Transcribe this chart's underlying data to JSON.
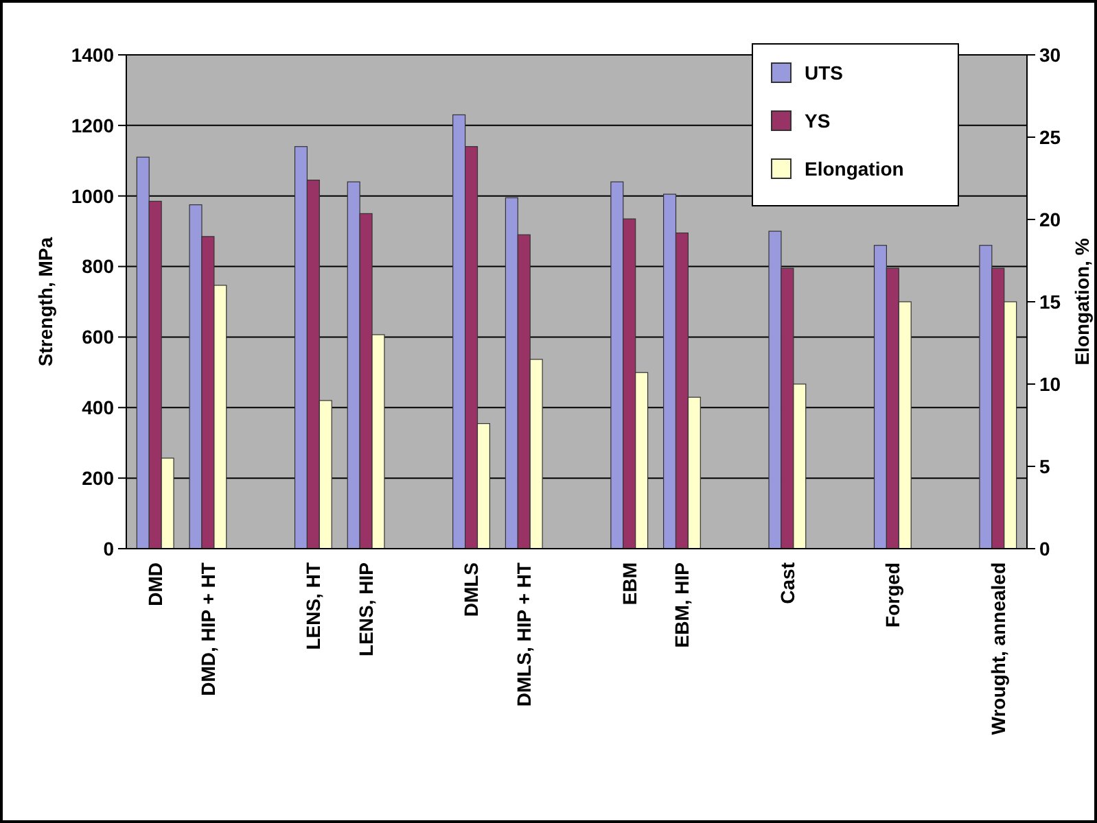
{
  "chart_data": {
    "type": "bar",
    "ylabel": "Strength, MPa",
    "y2label": "Elongation, %",
    "categories": [
      "DMD",
      "DMD, HIP + HT",
      null,
      "LENS, HT",
      "LENS, HIP",
      null,
      "DMLS",
      "DMLS,  HIP + HT",
      null,
      "EBM",
      "EBM, HIP",
      null,
      "Cast",
      null,
      "Forged",
      null,
      "Wrought, annealed"
    ],
    "series": [
      {
        "name": "UTS",
        "color": "#9999dd",
        "values": [
          1110,
          975,
          null,
          1140,
          1040,
          null,
          1230,
          995,
          null,
          1040,
          1005,
          null,
          900,
          null,
          860,
          null,
          860
        ]
      },
      {
        "name": "YS",
        "color": "#993366",
        "values": [
          985,
          885,
          null,
          1045,
          950,
          null,
          1140,
          890,
          null,
          935,
          895,
          null,
          795,
          null,
          795,
          null,
          795
        ]
      },
      {
        "name": "Elongation",
        "color": "#ffffcc",
        "axis": "y2",
        "values": [
          5.5,
          16,
          null,
          9,
          13,
          null,
          7.6,
          11.5,
          null,
          10.7,
          9.2,
          null,
          10,
          null,
          15,
          null,
          15
        ]
      }
    ],
    "ylim": [
      0,
      1400
    ],
    "yticks": [
      0,
      200,
      400,
      600,
      800,
      1000,
      1200,
      1400
    ],
    "y2lim": [
      0,
      30
    ],
    "y2ticks": [
      0,
      5,
      10,
      15,
      20,
      25,
      30
    ],
    "grid": "y",
    "legend": "top right"
  }
}
